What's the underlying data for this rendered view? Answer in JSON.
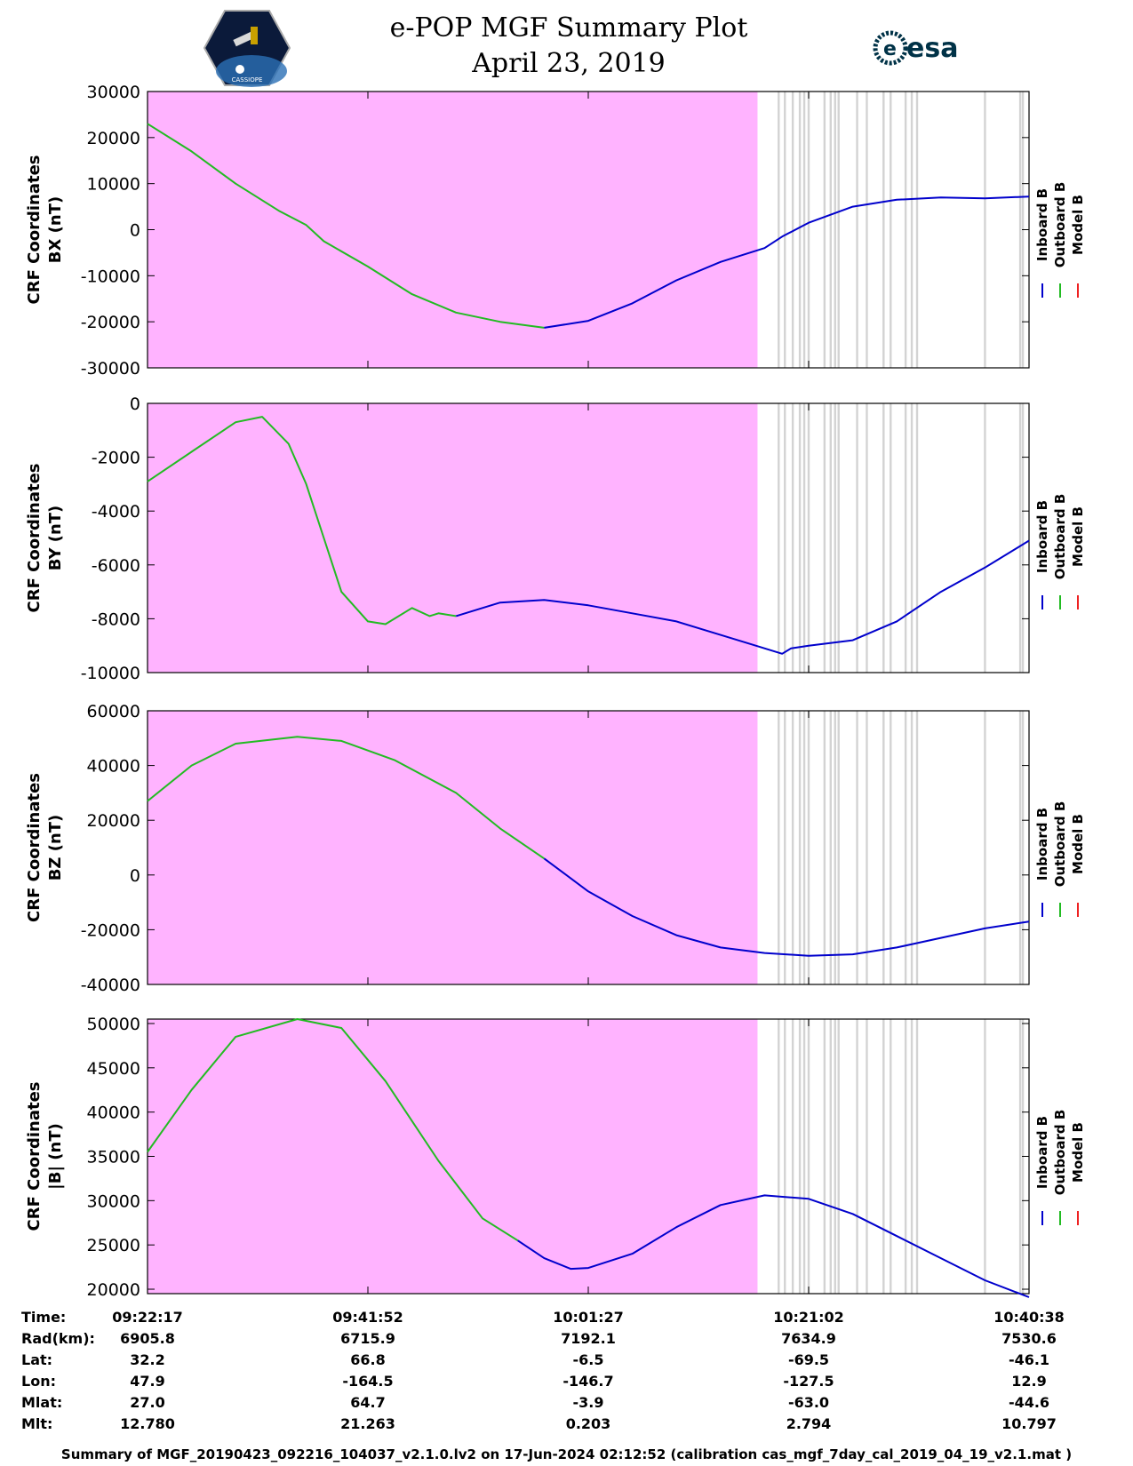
{
  "header": {
    "title": "e-POP MGF Summary Plot",
    "date": "April 23, 2019",
    "agency_logo_text": "esa",
    "mission_badge_text": "CASSIOPE"
  },
  "colors": {
    "inboard": "#0000cc",
    "outboard": "#22bb22",
    "model": "#ee2222",
    "background_fill": "#ffb3ff",
    "gap_stripe": "#d3d3d3"
  },
  "chart_data": [
    {
      "type": "line",
      "ylabel": [
        "CRF Coordinates",
        "BX (nT)"
      ],
      "ylim": [
        -30000,
        30000
      ],
      "yticks": [
        "30000",
        "20000",
        "10000",
        "0",
        "-10000",
        "-20000",
        "-30000"
      ],
      "legend": [
        "Inboard B",
        "Outboard B",
        "Model B"
      ],
      "series": [
        {
          "name": "Outboard B",
          "x": [
            0,
            5,
            10,
            15,
            18,
            20,
            25,
            30,
            35,
            40,
            45
          ],
          "values": [
            23000,
            17000,
            10000,
            4000,
            1000,
            -2500,
            -8000,
            -14000,
            -18000,
            -20000,
            -21300
          ]
        },
        {
          "name": "Inboard B",
          "x": [
            45,
            50,
            55,
            60,
            65,
            70,
            72,
            75,
            80,
            85,
            90,
            95,
            100
          ],
          "values": [
            -21300,
            -19800,
            -16000,
            -11000,
            -7000,
            -4000,
            -1500,
            1500,
            5000,
            6500,
            7000,
            6800,
            7200
          ]
        }
      ]
    },
    {
      "type": "line",
      "ylabel": [
        "CRF Coordinates",
        "BY (nT)"
      ],
      "ylim": [
        -10000,
        0
      ],
      "yticks": [
        "0",
        "-2000",
        "-4000",
        "-6000",
        "-8000",
        "-10000"
      ],
      "legend": [
        "Inboard B",
        "Outboard B",
        "Model B"
      ],
      "series": [
        {
          "name": "Outboard B",
          "x": [
            0,
            5,
            10,
            13,
            16,
            18,
            20,
            22,
            25,
            27,
            30,
            32,
            33,
            35
          ],
          "values": [
            -2900,
            -1800,
            -700,
            -500,
            -1500,
            -3000,
            -5000,
            -7000,
            -8100,
            -8200,
            -7600,
            -7900,
            -7800,
            -7900
          ]
        },
        {
          "name": "Inboard B",
          "x": [
            35,
            40,
            45,
            50,
            55,
            60,
            65,
            69,
            72,
            73,
            75,
            80,
            85,
            90,
            95,
            100
          ],
          "values": [
            -7900,
            -7400,
            -7300,
            -7500,
            -7800,
            -8100,
            -8600,
            -9000,
            -9300,
            -9100,
            -9000,
            -8800,
            -8100,
            -7000,
            -6100,
            -5100
          ]
        }
      ]
    },
    {
      "type": "line",
      "ylabel": [
        "CRF Coordinates",
        "BZ (nT)"
      ],
      "ylim": [
        -40000,
        60000
      ],
      "yticks": [
        "60000",
        "40000",
        "20000",
        "0",
        "-20000",
        "-40000"
      ],
      "legend": [
        "Inboard B",
        "Outboard B",
        "Model B"
      ],
      "series": [
        {
          "name": "Outboard B",
          "x": [
            0,
            5,
            10,
            17,
            22,
            28,
            35,
            40,
            45
          ],
          "values": [
            27000,
            40000,
            48000,
            50500,
            49000,
            42000,
            30000,
            17000,
            6000
          ]
        },
        {
          "name": "Inboard B",
          "x": [
            45,
            50,
            55,
            60,
            65,
            70,
            75,
            80,
            85,
            90,
            95,
            100
          ],
          "values": [
            6000,
            -6000,
            -15000,
            -22000,
            -26500,
            -28500,
            -29500,
            -29000,
            -26500,
            -23000,
            -19500,
            -17000
          ]
        }
      ]
    },
    {
      "type": "line",
      "ylabel": [
        "CRF Coordinates",
        "|B| (nT)"
      ],
      "ylim": [
        19500,
        50500
      ],
      "yticks": [
        "50000",
        "45000",
        "40000",
        "35000",
        "30000",
        "25000",
        "20000"
      ],
      "legend": [
        "Inboard B",
        "Outboard B",
        "Model B"
      ],
      "series": [
        {
          "name": "Outboard B",
          "x": [
            0,
            5,
            10,
            17,
            22,
            27,
            33,
            38,
            42
          ],
          "values": [
            35500,
            42500,
            48500,
            50500,
            49500,
            43500,
            34500,
            28000,
            25500
          ]
        },
        {
          "name": "Inboard B",
          "x": [
            42,
            45,
            48,
            50,
            55,
            60,
            65,
            70,
            75,
            80,
            85,
            90,
            95,
            100
          ],
          "values": [
            25500,
            23500,
            22300,
            22400,
            24000,
            27000,
            29500,
            30600,
            30200,
            28500,
            26000,
            23500,
            21000,
            19100
          ]
        }
      ]
    }
  ],
  "stripes": [
    71.6,
    72.3,
    73.2,
    74.0,
    74.5,
    75.0,
    76.8,
    77.5,
    78.0,
    78.4,
    80.5,
    81.6,
    83.5,
    84.3,
    86.0,
    86.7,
    87.3,
    95.0,
    99.0,
    99.3
  ],
  "pink_end_pct": 69.2,
  "xticks": [
    "09:22:17",
    "09:41:52",
    "10:01:27",
    "10:21:02",
    "10:40:38"
  ],
  "ephemeris": {
    "rows": [
      {
        "label": "Time:",
        "values": [
          "09:22:17",
          "09:41:52",
          "10:01:27",
          "10:21:02",
          "10:40:38"
        ]
      },
      {
        "label": "Rad(km):",
        "values": [
          "6905.8",
          "6715.9",
          "7192.1",
          "7634.9",
          "7530.6"
        ]
      },
      {
        "label": "Lat:",
        "values": [
          "32.2",
          "66.8",
          "-6.5",
          "-69.5",
          "-46.1"
        ]
      },
      {
        "label": "Lon:",
        "values": [
          "47.9",
          "-164.5",
          "-146.7",
          "-127.5",
          "12.9"
        ]
      },
      {
        "label": "Mlat:",
        "values": [
          "27.0",
          "64.7",
          "-3.9",
          "-63.0",
          "-44.6"
        ]
      },
      {
        "label": "Mlt:",
        "values": [
          "12.780",
          "21.263",
          "0.203",
          "2.794",
          "10.797"
        ]
      }
    ]
  },
  "footer": "Summary of MGF_20190423_092216_104037_v2.1.0.lv2 on 17-Jun-2024 02:12:52 (calibration cas_mgf_7day_cal_2019_04_19_v2.1.mat )"
}
